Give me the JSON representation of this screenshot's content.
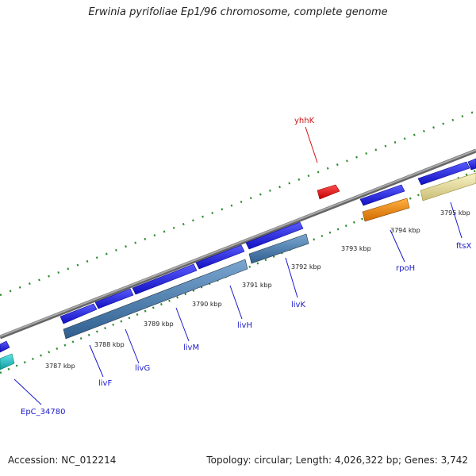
{
  "title": "Erwinia pyrifoliae Ep1/96 chromosome, complete genome",
  "footer": {
    "accession": "Accession: NC_012214",
    "topology": "Topology: circular; Length: 4,026,322 bp; Genes: 3,742"
  },
  "genes": [
    {
      "id": "yhhK",
      "label": "yhhK"
    },
    {
      "id": "rpoH",
      "label": "rpoH"
    },
    {
      "id": "ftsX",
      "label": "ftsX"
    },
    {
      "id": "livK",
      "label": "livK"
    },
    {
      "id": "livH",
      "label": "livH"
    },
    {
      "id": "livM",
      "label": "livM"
    },
    {
      "id": "livG",
      "label": "livG"
    },
    {
      "id": "livF",
      "label": "livF"
    },
    {
      "id": "EpC_34780",
      "label": "EpC_34780"
    }
  ],
  "scale_labels": [
    "3787 kbp",
    "3788 kbp",
    "3789 kbp",
    "3790 kbp",
    "3791 kbp",
    "3792 kbp",
    "3793 kbp",
    "3794 kbp",
    "3795 kbp"
  ],
  "colors": {
    "backbone": "#8a8a8a",
    "ticks": "#2e8b2e",
    "gene_blue": "#1a1adf",
    "gene_red": "#e01010",
    "gene_orange": "#ff8c00",
    "gene_khaki": "#efe6a8",
    "gene_steel": "#4a7fb0",
    "gene_cyan": "#20c0c8",
    "label": "#1a1acc",
    "label_red": "#cc1111"
  }
}
